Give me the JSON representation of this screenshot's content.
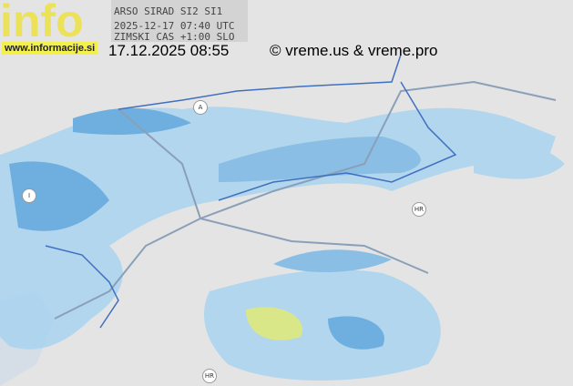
{
  "header": {
    "logo_text": "info",
    "website": "www.informacije.si",
    "radar_source": "ARSO SIRAD SI2 SI1",
    "radar_time": "2025-12-17 07:40 UTC",
    "timezone_note": "ZIMSKI CAS +1:00 SLO",
    "local_timestamp": "17.12.2025 08:55",
    "copyright": "© vreme.us & vreme.pro"
  },
  "map": {
    "country_markers": [
      "A",
      "I",
      "HR",
      "HR"
    ],
    "colors": {
      "land": "#e4e4e4",
      "radar_light": "#a9d4f0",
      "radar_medium": "#5ba6e0",
      "radar_strong": "#d8e87a",
      "roads": "#8aa0b8",
      "border": "#4070c0"
    }
  }
}
